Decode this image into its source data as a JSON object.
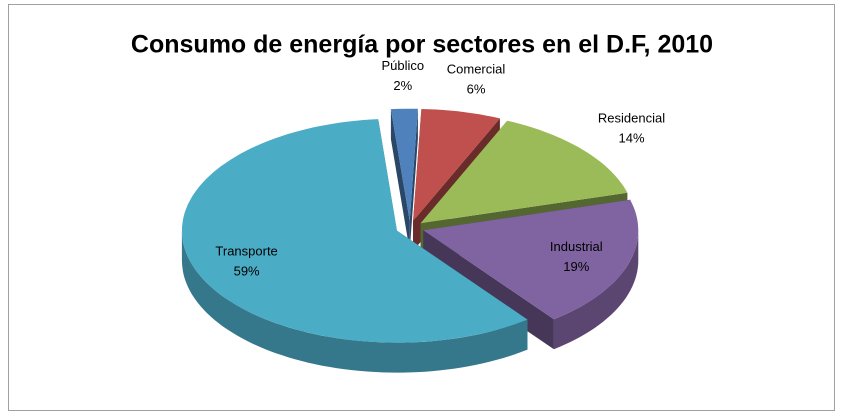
{
  "chart_data": {
    "type": "pie3d",
    "title": "Consumo de energía por sectores en el D.F, 2010",
    "categories": [
      "Público",
      "Comercial",
      "Residencial",
      "Industrial",
      "Transporte"
    ],
    "values": [
      2,
      6,
      14,
      19,
      59
    ],
    "value_labels": [
      "2%",
      "6%",
      "14%",
      "19%",
      "59%"
    ],
    "colors": [
      "#4f81bd",
      "#c0504d",
      "#9bbb59",
      "#8064a2",
      "#4bacc6"
    ]
  }
}
